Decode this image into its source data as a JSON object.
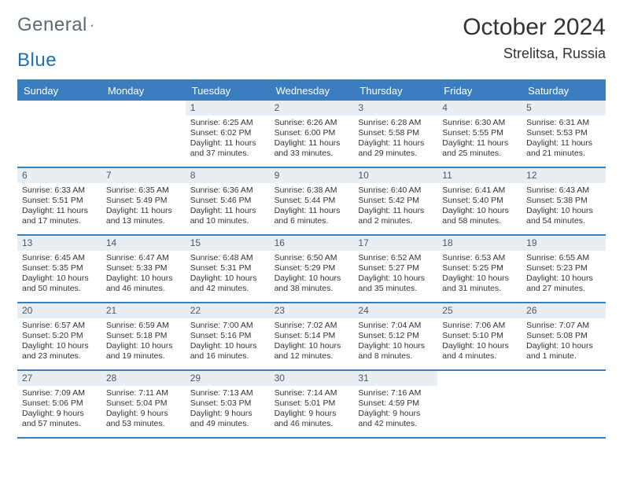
{
  "logo": {
    "part1": "General",
    "part2": "Blue"
  },
  "title": {
    "month": "October 2024",
    "location": "Strelitsa, Russia"
  },
  "days": [
    "Sunday",
    "Monday",
    "Tuesday",
    "Wednesday",
    "Thursday",
    "Friday",
    "Saturday"
  ],
  "colors": {
    "accent": "#3a7ebf",
    "headerRowBg": "#e9eef2"
  },
  "weeks": [
    [
      {
        "n": "",
        "sr": "",
        "ss": "",
        "dl": ""
      },
      {
        "n": "",
        "sr": "",
        "ss": "",
        "dl": ""
      },
      {
        "n": "1",
        "sr": "Sunrise: 6:25 AM",
        "ss": "Sunset: 6:02 PM",
        "dl": "Daylight: 11 hours and 37 minutes."
      },
      {
        "n": "2",
        "sr": "Sunrise: 6:26 AM",
        "ss": "Sunset: 6:00 PM",
        "dl": "Daylight: 11 hours and 33 minutes."
      },
      {
        "n": "3",
        "sr": "Sunrise: 6:28 AM",
        "ss": "Sunset: 5:58 PM",
        "dl": "Daylight: 11 hours and 29 minutes."
      },
      {
        "n": "4",
        "sr": "Sunrise: 6:30 AM",
        "ss": "Sunset: 5:55 PM",
        "dl": "Daylight: 11 hours and 25 minutes."
      },
      {
        "n": "5",
        "sr": "Sunrise: 6:31 AM",
        "ss": "Sunset: 5:53 PM",
        "dl": "Daylight: 11 hours and 21 minutes."
      }
    ],
    [
      {
        "n": "6",
        "sr": "Sunrise: 6:33 AM",
        "ss": "Sunset: 5:51 PM",
        "dl": "Daylight: 11 hours and 17 minutes."
      },
      {
        "n": "7",
        "sr": "Sunrise: 6:35 AM",
        "ss": "Sunset: 5:49 PM",
        "dl": "Daylight: 11 hours and 13 minutes."
      },
      {
        "n": "8",
        "sr": "Sunrise: 6:36 AM",
        "ss": "Sunset: 5:46 PM",
        "dl": "Daylight: 11 hours and 10 minutes."
      },
      {
        "n": "9",
        "sr": "Sunrise: 6:38 AM",
        "ss": "Sunset: 5:44 PM",
        "dl": "Daylight: 11 hours and 6 minutes."
      },
      {
        "n": "10",
        "sr": "Sunrise: 6:40 AM",
        "ss": "Sunset: 5:42 PM",
        "dl": "Daylight: 11 hours and 2 minutes."
      },
      {
        "n": "11",
        "sr": "Sunrise: 6:41 AM",
        "ss": "Sunset: 5:40 PM",
        "dl": "Daylight: 10 hours and 58 minutes."
      },
      {
        "n": "12",
        "sr": "Sunrise: 6:43 AM",
        "ss": "Sunset: 5:38 PM",
        "dl": "Daylight: 10 hours and 54 minutes."
      }
    ],
    [
      {
        "n": "13",
        "sr": "Sunrise: 6:45 AM",
        "ss": "Sunset: 5:35 PM",
        "dl": "Daylight: 10 hours and 50 minutes."
      },
      {
        "n": "14",
        "sr": "Sunrise: 6:47 AM",
        "ss": "Sunset: 5:33 PM",
        "dl": "Daylight: 10 hours and 46 minutes."
      },
      {
        "n": "15",
        "sr": "Sunrise: 6:48 AM",
        "ss": "Sunset: 5:31 PM",
        "dl": "Daylight: 10 hours and 42 minutes."
      },
      {
        "n": "16",
        "sr": "Sunrise: 6:50 AM",
        "ss": "Sunset: 5:29 PM",
        "dl": "Daylight: 10 hours and 38 minutes."
      },
      {
        "n": "17",
        "sr": "Sunrise: 6:52 AM",
        "ss": "Sunset: 5:27 PM",
        "dl": "Daylight: 10 hours and 35 minutes."
      },
      {
        "n": "18",
        "sr": "Sunrise: 6:53 AM",
        "ss": "Sunset: 5:25 PM",
        "dl": "Daylight: 10 hours and 31 minutes."
      },
      {
        "n": "19",
        "sr": "Sunrise: 6:55 AM",
        "ss": "Sunset: 5:23 PM",
        "dl": "Daylight: 10 hours and 27 minutes."
      }
    ],
    [
      {
        "n": "20",
        "sr": "Sunrise: 6:57 AM",
        "ss": "Sunset: 5:20 PM",
        "dl": "Daylight: 10 hours and 23 minutes."
      },
      {
        "n": "21",
        "sr": "Sunrise: 6:59 AM",
        "ss": "Sunset: 5:18 PM",
        "dl": "Daylight: 10 hours and 19 minutes."
      },
      {
        "n": "22",
        "sr": "Sunrise: 7:00 AM",
        "ss": "Sunset: 5:16 PM",
        "dl": "Daylight: 10 hours and 16 minutes."
      },
      {
        "n": "23",
        "sr": "Sunrise: 7:02 AM",
        "ss": "Sunset: 5:14 PM",
        "dl": "Daylight: 10 hours and 12 minutes."
      },
      {
        "n": "24",
        "sr": "Sunrise: 7:04 AM",
        "ss": "Sunset: 5:12 PM",
        "dl": "Daylight: 10 hours and 8 minutes."
      },
      {
        "n": "25",
        "sr": "Sunrise: 7:06 AM",
        "ss": "Sunset: 5:10 PM",
        "dl": "Daylight: 10 hours and 4 minutes."
      },
      {
        "n": "26",
        "sr": "Sunrise: 7:07 AM",
        "ss": "Sunset: 5:08 PM",
        "dl": "Daylight: 10 hours and 1 minute."
      }
    ],
    [
      {
        "n": "27",
        "sr": "Sunrise: 7:09 AM",
        "ss": "Sunset: 5:06 PM",
        "dl": "Daylight: 9 hours and 57 minutes."
      },
      {
        "n": "28",
        "sr": "Sunrise: 7:11 AM",
        "ss": "Sunset: 5:04 PM",
        "dl": "Daylight: 9 hours and 53 minutes."
      },
      {
        "n": "29",
        "sr": "Sunrise: 7:13 AM",
        "ss": "Sunset: 5:03 PM",
        "dl": "Daylight: 9 hours and 49 minutes."
      },
      {
        "n": "30",
        "sr": "Sunrise: 7:14 AM",
        "ss": "Sunset: 5:01 PM",
        "dl": "Daylight: 9 hours and 46 minutes."
      },
      {
        "n": "31",
        "sr": "Sunrise: 7:16 AM",
        "ss": "Sunset: 4:59 PM",
        "dl": "Daylight: 9 hours and 42 minutes."
      },
      {
        "n": "",
        "sr": "",
        "ss": "",
        "dl": ""
      },
      {
        "n": "",
        "sr": "",
        "ss": "",
        "dl": ""
      }
    ]
  ]
}
